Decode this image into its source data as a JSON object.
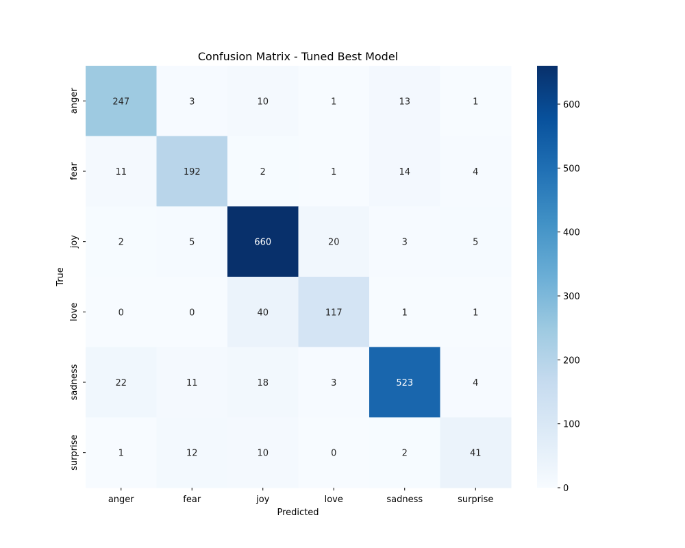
{
  "chart_data": {
    "type": "heatmap",
    "title": "Confusion Matrix - Tuned Best Model",
    "xlabel": "Predicted",
    "ylabel": "True",
    "x_categories": [
      "anger",
      "fear",
      "joy",
      "love",
      "sadness",
      "surprise"
    ],
    "y_categories": [
      "anger",
      "fear",
      "joy",
      "love",
      "sadness",
      "surprise"
    ],
    "values": [
      [
        247,
        3,
        10,
        1,
        13,
        1
      ],
      [
        11,
        192,
        2,
        1,
        14,
        4
      ],
      [
        2,
        5,
        660,
        20,
        3,
        5
      ],
      [
        0,
        0,
        40,
        117,
        1,
        1
      ],
      [
        22,
        11,
        18,
        3,
        523,
        4
      ],
      [
        1,
        12,
        10,
        0,
        2,
        41
      ]
    ],
    "colorbar": {
      "min": 0,
      "max": 660,
      "ticks": [
        0,
        100,
        200,
        300,
        400,
        500,
        600
      ],
      "colormap": "Blues"
    }
  }
}
